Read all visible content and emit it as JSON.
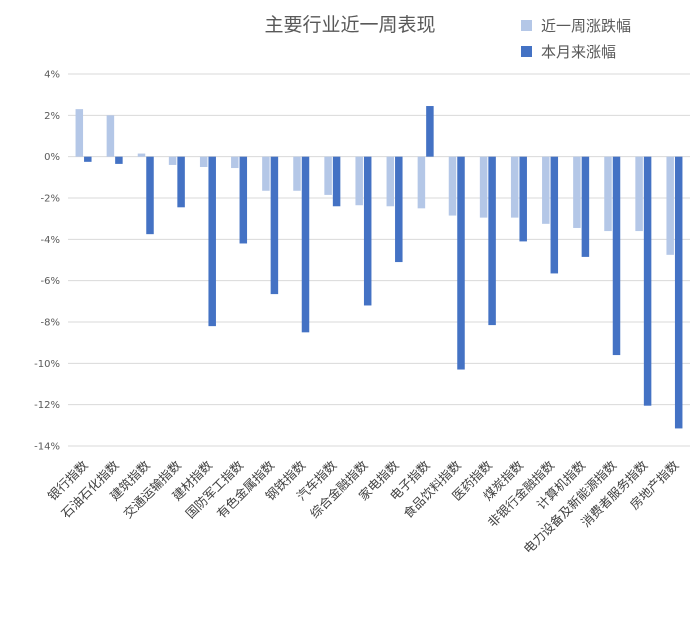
{
  "chart_data": {
    "type": "bar",
    "title": "主要行业近一周表现",
    "xlabel": "",
    "ylabel": "",
    "ylim": [
      -14,
      4
    ],
    "y_ticks": [
      "4%",
      "2%",
      "0%",
      "-2%",
      "-4%",
      "-6%",
      "-8%",
      "-10%",
      "-12%",
      "-14%"
    ],
    "grid": true,
    "legend_position": "top-right",
    "categories": [
      "银行指数",
      "石油石化指数",
      "建筑指数",
      "交通运输指数",
      "建材指数",
      "国防军工指数",
      "有色金属指数",
      "钢铁指数",
      "汽车指数",
      "综合金融指数",
      "家电指数",
      "电子指数",
      "食品饮料指数",
      "医药指数",
      "煤炭指数",
      "非银行金融指数",
      "计算机指数",
      "电力设备及新能源指数",
      "消费者服务指数",
      "房地产指数"
    ],
    "series": [
      {
        "name": "近一周涨跌幅",
        "color": "#b4c7e7",
        "values": [
          2.3,
          2.0,
          0.15,
          -0.4,
          -0.5,
          -0.55,
          -1.65,
          -1.65,
          -1.85,
          -2.35,
          -2.4,
          -2.5,
          -2.85,
          -2.95,
          -2.95,
          -3.25,
          -3.45,
          -3.6,
          -3.6,
          -4.75
        ]
      },
      {
        "name": "本月来涨幅",
        "color": "#4472c4",
        "values": [
          -0.25,
          -0.35,
          -3.75,
          -2.45,
          -8.2,
          -4.2,
          -6.65,
          -8.5,
          -2.4,
          -7.2,
          -5.1,
          2.45,
          -10.3,
          -8.15,
          -4.1,
          -5.65,
          -4.85,
          -9.6,
          -12.05,
          -13.15
        ]
      }
    ]
  }
}
